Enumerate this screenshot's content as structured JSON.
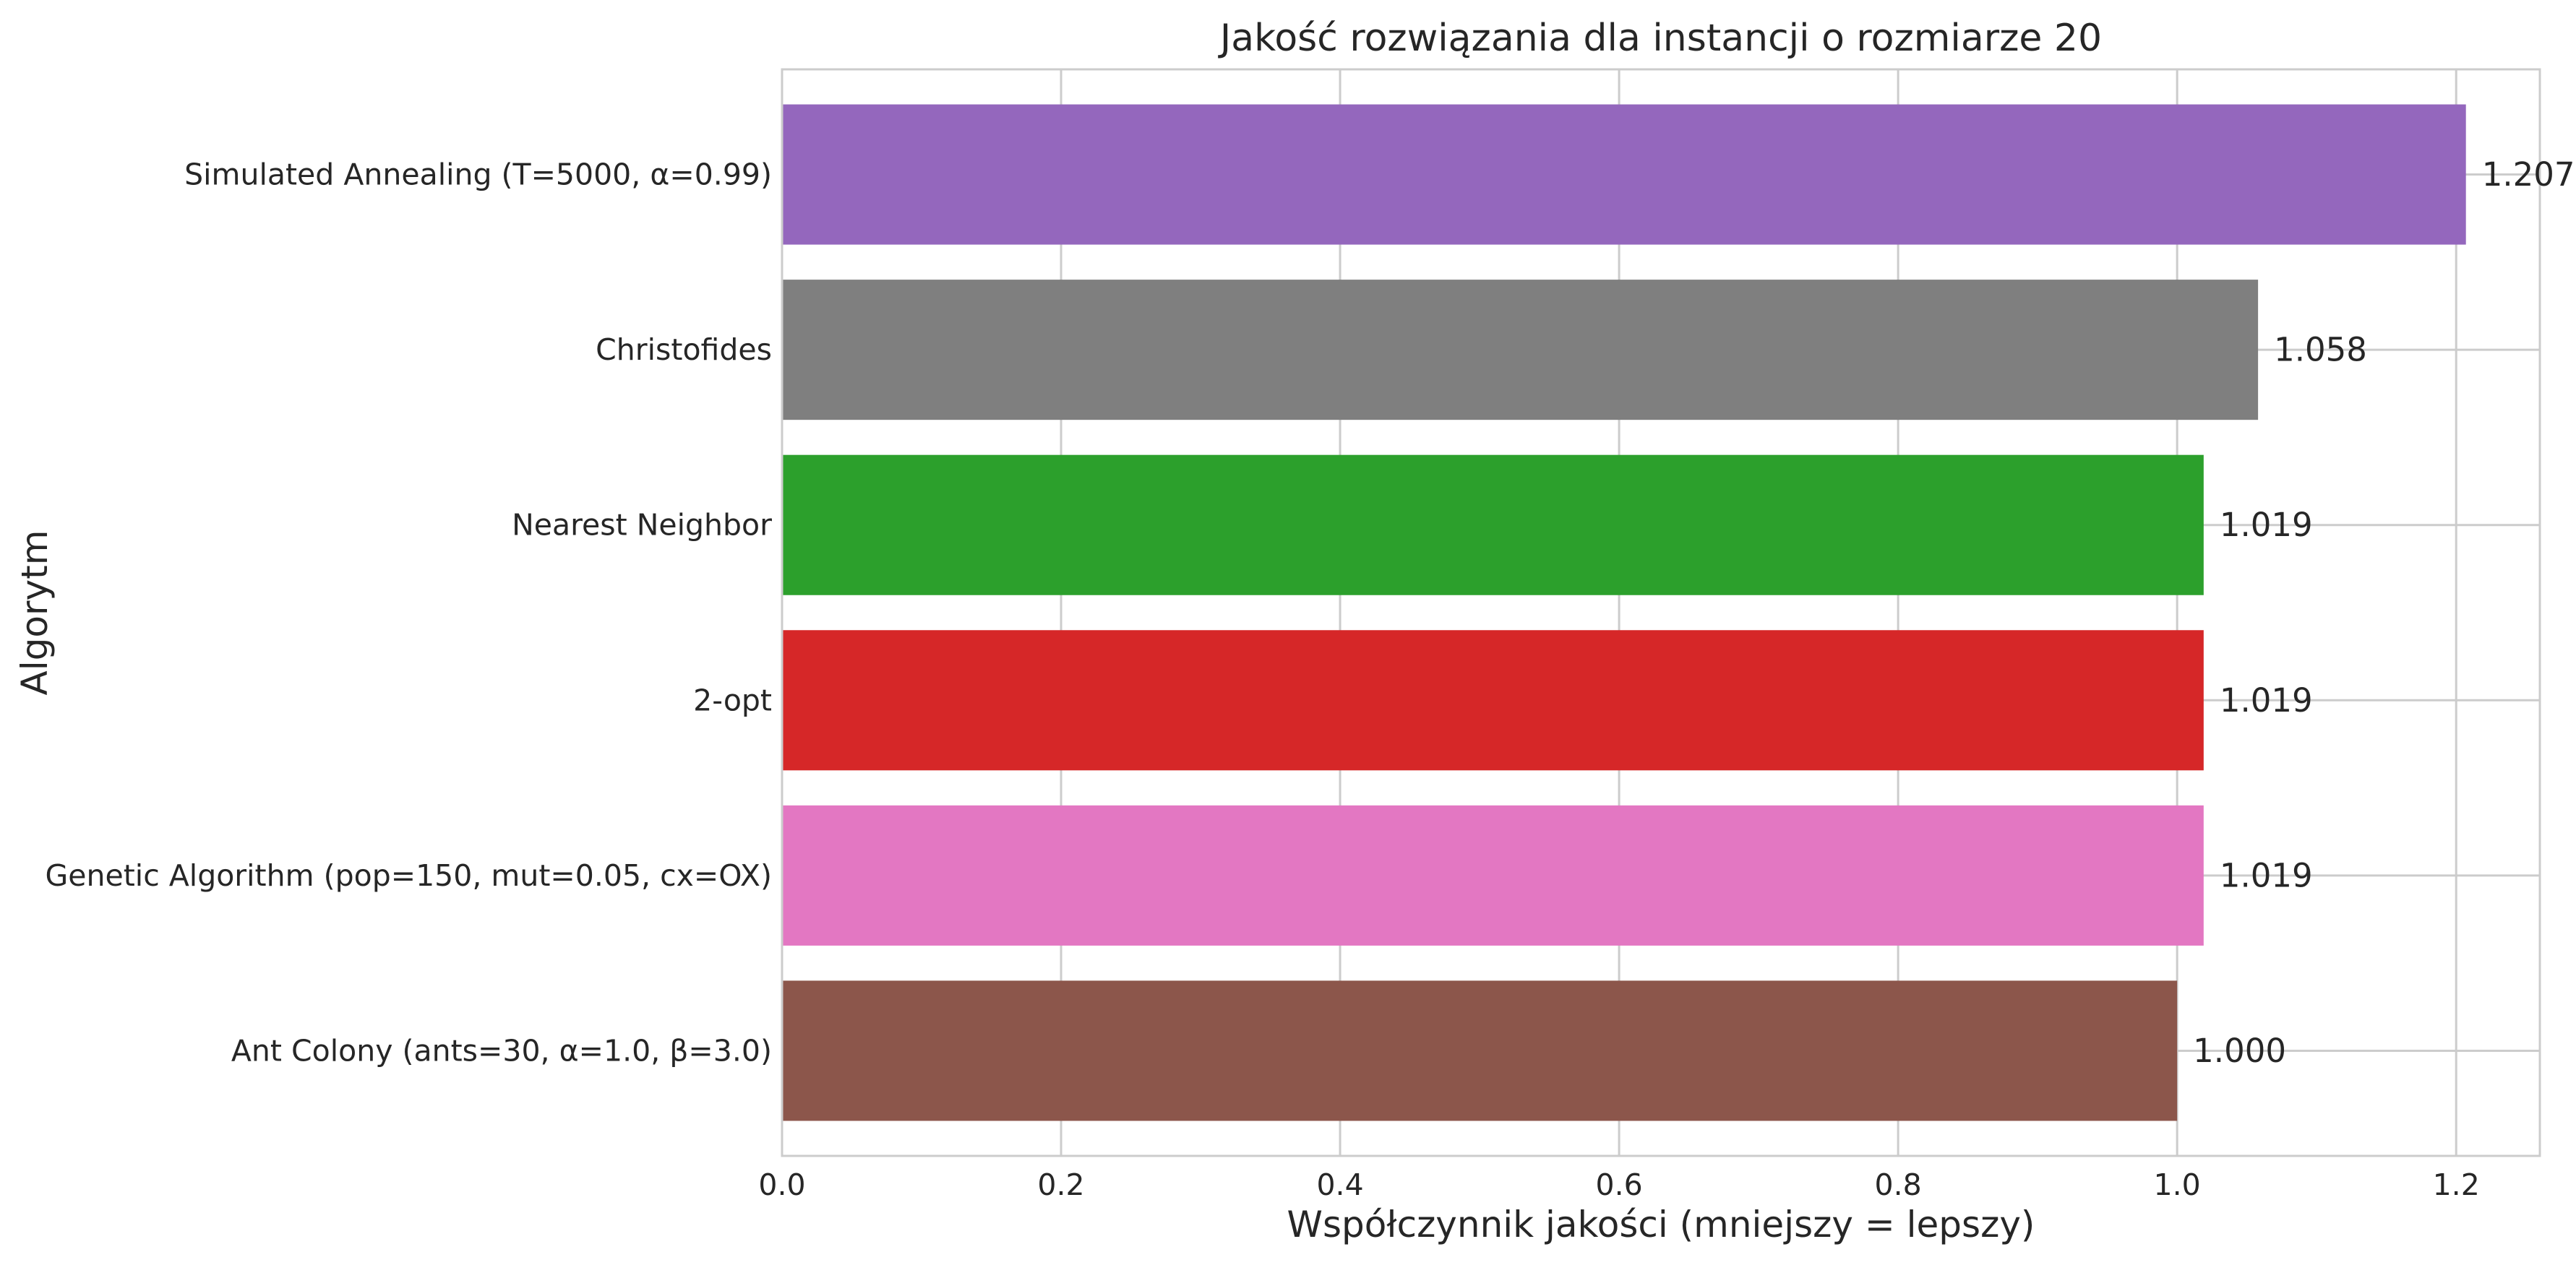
{
  "chart_data": {
    "type": "bar",
    "orientation": "horizontal",
    "title": "Jakość rozwiązania dla instancji o rozmiarze 20",
    "xlabel": "Współczynnik jakości (mniejszy = lepszy)",
    "ylabel": "Algorytm",
    "xlim": [
      0,
      1.26
    ],
    "xticks": [
      0.0,
      0.2,
      0.4,
      0.6,
      0.8,
      1.0,
      1.2
    ],
    "xtick_labels": [
      "0.0",
      "0.2",
      "0.4",
      "0.6",
      "0.8",
      "1.0",
      "1.2"
    ],
    "grid": true,
    "categories": [
      "Simulated Annealing (T=5000, α=0.99)",
      "Christofides",
      "Nearest Neighbor",
      "2-opt",
      "Genetic Algorithm (pop=150, mut=0.05, cx=OX)",
      "Ant Colony (ants=30, α=1.0, β=3.0)"
    ],
    "values": [
      1.207,
      1.058,
      1.019,
      1.019,
      1.019,
      1.0
    ],
    "value_labels": [
      "1.207",
      "1.058",
      "1.019",
      "1.019",
      "1.019",
      "1.000"
    ],
    "colors": [
      "#9467bd",
      "#7f7f7f",
      "#2ca02c",
      "#d62728",
      "#e377c2",
      "#8c564b"
    ]
  }
}
